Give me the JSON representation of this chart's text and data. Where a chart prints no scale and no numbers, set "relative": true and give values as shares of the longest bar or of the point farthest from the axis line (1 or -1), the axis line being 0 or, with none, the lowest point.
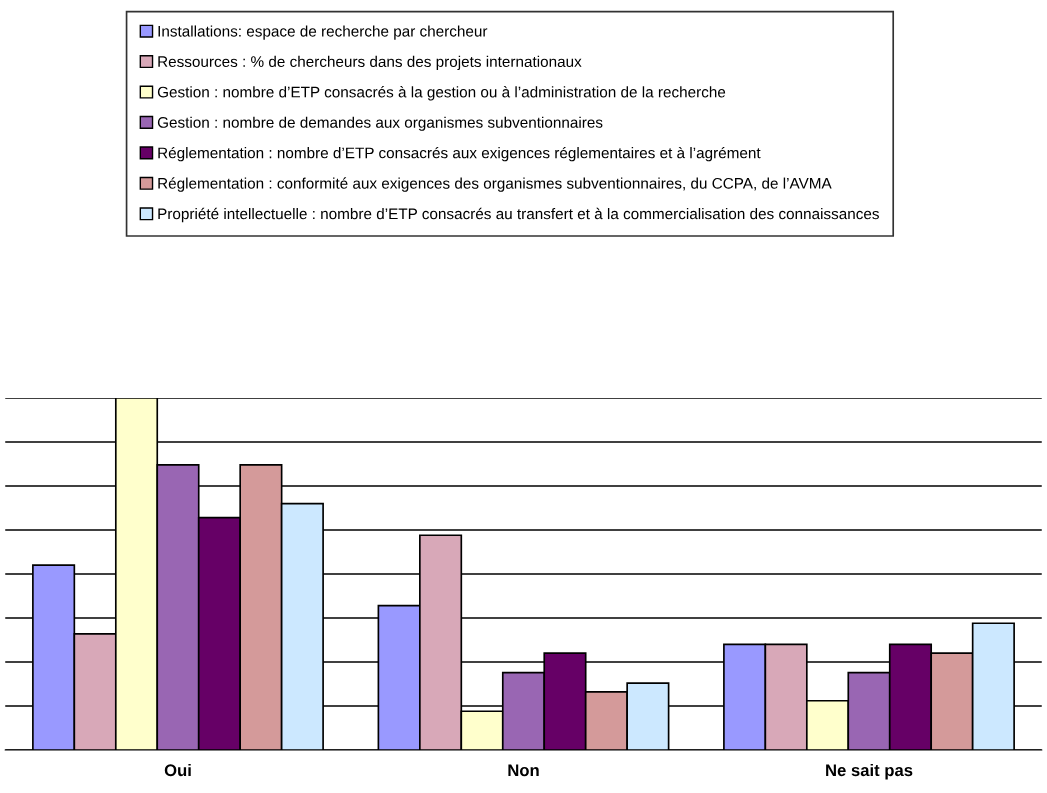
{
  "chart_data": {
    "type": "bar",
    "relative": true,
    "categories": [
      "Oui",
      "Non",
      "Ne sait pas"
    ],
    "series": [
      {
        "name": "Installations: espace de recherche par chercheur",
        "color": "#9999ff",
        "values": [
          0.525,
          0.41,
          0.3
        ]
      },
      {
        "name": "Ressources : % de chercheurs dans des projets internationaux",
        "color": "#d8a8b8",
        "values": [
          0.33,
          0.61,
          0.3
        ]
      },
      {
        "name": "Gestion : nombre d’ETP consacrés à la gestion ou à l’administration de la recherche",
        "color": "#ffffcc",
        "values": [
          1,
          0.11,
          0.14
        ]
      },
      {
        "name": "Gestion : nombre de demandes aux organismes subventionnaires",
        "color": "#9966b3",
        "values": [
          0.81,
          0.22,
          0.22
        ]
      },
      {
        "name": "Réglementation : nombre d’ETP consacrés aux exigences réglementaires et à l’agrément",
        "color": "#660066",
        "values": [
          0.66,
          0.275,
          0.3
        ]
      },
      {
        "name": "Réglementation : conformité aux exigences des organismes subventionnaires, du CCPA, de l’AVMA",
        "color": "#d49a9a",
        "values": [
          0.81,
          0.165,
          0.275
        ]
      },
      {
        "name": "Propriété intellectuelle : nombre d’ETP consacrés au transfert et à la commercialisation des connaissances",
        "color": "#cce8ff",
        "values": [
          0.7,
          0.19,
          0.36
        ]
      }
    ],
    "grid": "y",
    "legend": "top",
    "tick_labels": "x"
  }
}
